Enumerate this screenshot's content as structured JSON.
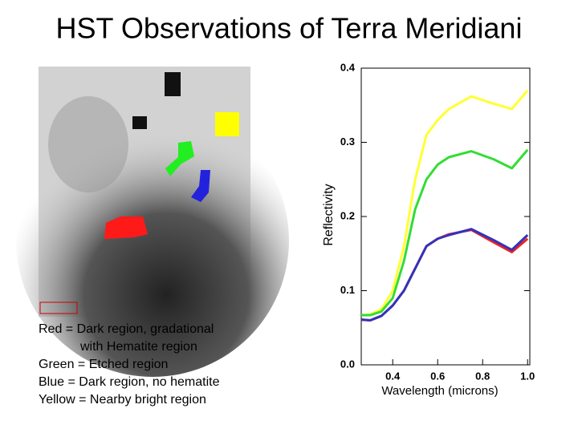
{
  "slide": {
    "title": "HST Observations of Terra Meridiani",
    "notes": [
      "Red = Dark region, gradational",
      "with Hematite region",
      "Green = Etched region",
      "Blue = Dark region, no hematite",
      "Yellow = Nearby bright region"
    ]
  },
  "chart_data": {
    "type": "line",
    "xlabel": "Wavelength (microns)",
    "ylabel": "Reflectivity",
    "x": [
      0.26,
      0.3,
      0.35,
      0.4,
      0.45,
      0.5,
      0.55,
      0.6,
      0.65,
      0.75,
      0.85,
      0.93,
      1.0
    ],
    "series": [
      {
        "name": "Yellow",
        "color": "#ffff33",
        "values": [
          0.067,
          0.068,
          0.075,
          0.1,
          0.16,
          0.25,
          0.31,
          0.33,
          0.345,
          0.362,
          0.352,
          0.345,
          0.37
        ]
      },
      {
        "name": "Green",
        "color": "#33dd33",
        "values": [
          0.067,
          0.067,
          0.072,
          0.09,
          0.14,
          0.21,
          0.25,
          0.27,
          0.28,
          0.288,
          0.277,
          0.265,
          0.29
        ]
      },
      {
        "name": "Red",
        "color": "#ee2222",
        "values": [
          0.061,
          0.06,
          0.066,
          0.08,
          0.1,
          0.13,
          0.16,
          0.17,
          0.176,
          0.182,
          0.165,
          0.152,
          0.17
        ]
      },
      {
        "name": "Blue",
        "color": "#3333bb",
        "values": [
          0.061,
          0.06,
          0.066,
          0.08,
          0.1,
          0.13,
          0.16,
          0.17,
          0.175,
          0.183,
          0.168,
          0.155,
          0.175
        ]
      }
    ],
    "xlim": [
      0.26,
      1.01
    ],
    "ylim": [
      0,
      0.4
    ],
    "xticks": [
      0.4,
      0.6,
      0.8,
      {
        "value": 1,
        "label": "1.0"
      }
    ],
    "yticks": [
      {
        "value": 0,
        "label": "0.0"
      },
      0.1,
      0.2,
      0.3,
      0.4
    ]
  }
}
